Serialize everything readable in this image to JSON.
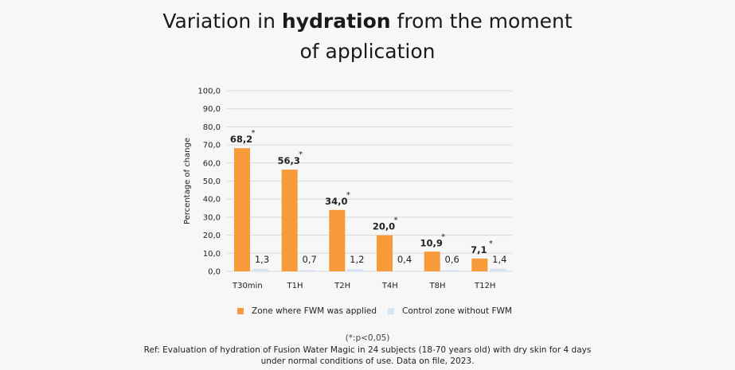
{
  "title": {
    "prefix": "Variation in ",
    "bold": "hydration",
    "suffix": " from the moment",
    "line2": "of application"
  },
  "colors": {
    "applied": "#f79a3a",
    "control": "#d5e2f2",
    "grid": "#d9d9d9"
  },
  "chart_data": {
    "type": "bar",
    "title": "Variation in hydration from the moment of application",
    "xlabel": "",
    "ylabel": "Percentage of change",
    "ylim": [
      0,
      100
    ],
    "yticks": [
      "0,0",
      "10,0",
      "20,0",
      "30,0",
      "40,0",
      "50,0",
      "60,0",
      "70,0",
      "80,0",
      "90,0",
      "100,0"
    ],
    "categories": [
      "T30min",
      "T1H",
      "T2H",
      "T4H",
      "T8H",
      "T12H"
    ],
    "series": [
      {
        "name": "Zone where FWM was applied",
        "values": [
          68.2,
          56.3,
          34.0,
          20.0,
          10.9,
          7.1
        ],
        "labels": [
          "68,2",
          "56,3",
          "34,0",
          "20,0",
          "10,9",
          "7,1"
        ],
        "significant": [
          true,
          true,
          true,
          true,
          true,
          true
        ]
      },
      {
        "name": "Control zone without FWM",
        "values": [
          1.3,
          0.7,
          1.2,
          0.4,
          0.6,
          1.4
        ],
        "labels": [
          "1,3",
          "0,7",
          "1,2",
          "0,4",
          "0,6",
          "1,4"
        ]
      }
    ],
    "significance_marker": "*",
    "legend_position": "bottom"
  },
  "footnote": {
    "significance": "(*:p<0,05)",
    "ref_line1": "Ref: Evaluation of hydration of Fusion Water Magic in 24 subjects (18-70 years old) with dry skin for 4 days",
    "ref_line2": "under normal conditions of use. Data on file, 2023."
  }
}
